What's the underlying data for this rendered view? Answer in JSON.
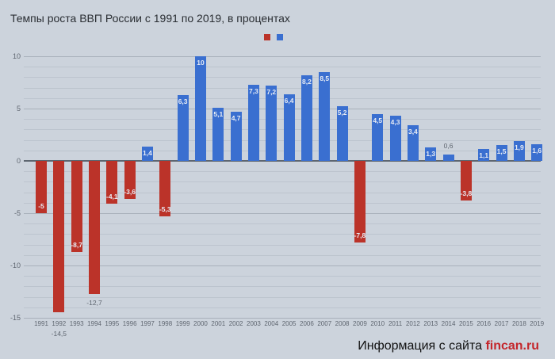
{
  "title": "Темпы роста ВВП России с 1991 по 2019, в процентах",
  "source": {
    "prefix": "Информация с сайта",
    "site": "fincan.ru"
  },
  "colors": {
    "negative": "#bb3329",
    "positive": "#3a6fd0"
  },
  "chart_data": {
    "type": "bar",
    "title": "Темпы роста ВВП России с 1991 по 2019, в процентах",
    "xlabel": "",
    "ylabel": "",
    "ylim": [
      -15,
      10
    ],
    "yticks": [
      10,
      5,
      0,
      -5,
      -10,
      -15
    ],
    "grid": true,
    "legend": {
      "position": "top",
      "entries": [
        "",
        ""
      ]
    },
    "categories": [
      "1991",
      "1992",
      "1993",
      "1994",
      "1995",
      "1996",
      "1997",
      "1998",
      "1999",
      "2000",
      "2001",
      "2002",
      "2003",
      "2004",
      "2005",
      "2006",
      "2007",
      "2008",
      "2009",
      "2010",
      "2011",
      "2012",
      "2013",
      "2014",
      "2015",
      "2016",
      "2017",
      "2018",
      "2019"
    ],
    "values": [
      -5,
      -14.5,
      -8.7,
      -12.7,
      -4.1,
      -3.6,
      1.4,
      -5.3,
      6.3,
      10,
      5.1,
      4.7,
      7.3,
      7.2,
      6.4,
      8.2,
      8.5,
      5.2,
      -7.8,
      4.5,
      4.3,
      3.4,
      1.3,
      0.6,
      -3.8,
      1.1,
      1.5,
      1.9,
      1.6
    ],
    "labels": [
      "-5",
      "-14,5",
      "-8,7",
      "-12,7",
      "-4,1",
      "-3,6",
      "1,4",
      "-5,3",
      "6,3",
      "10",
      "5,1",
      "4,7",
      "7,3",
      "7,2",
      "6,4",
      "8,2",
      "8,5",
      "5,2",
      "-7,8",
      "4,5",
      "4,3",
      "3,4",
      "1,3",
      "0,6",
      "-3,8",
      "1,1",
      "1,5",
      "1,9",
      "1,6"
    ]
  }
}
